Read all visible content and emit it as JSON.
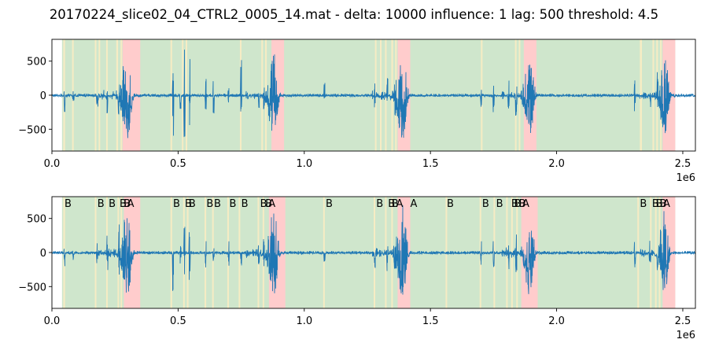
{
  "chart_data": {
    "title": "20170224_slice02_04_CTRL2_0005_14.mat - delta: 10000 influence: 1 lag: 500 threshold: 4.5",
    "type": "line",
    "colors": {
      "signal": "#1f77b4",
      "background_region": "#cfe6cc",
      "event_B": "#f6ecc4",
      "event_A": "#ffcccc"
    },
    "bursts": [
      {
        "x": 300000,
        "amp": 660,
        "w": 30000
      },
      {
        "x": 880000,
        "amp": 680,
        "w": 28000
      },
      {
        "x": 1390000,
        "amp": 720,
        "w": 30000
      },
      {
        "x": 1895000,
        "amp": 650,
        "w": 28000
      },
      {
        "x": 2430000,
        "amp": 640,
        "w": 26000
      }
    ],
    "spikes": [
      {
        "x": 50000,
        "amp": 260
      },
      {
        "x": 85000,
        "amp": 150
      },
      {
        "x": 180000,
        "amp": 220
      },
      {
        "x": 220000,
        "amp": 300
      },
      {
        "x": 265000,
        "amp": 420
      },
      {
        "x": 480000,
        "amp": 680
      },
      {
        "x": 510000,
        "amp": 300
      },
      {
        "x": 525000,
        "amp": 680
      },
      {
        "x": 545000,
        "amp": 560
      },
      {
        "x": 610000,
        "amp": 250
      },
      {
        "x": 640000,
        "amp": 300
      },
      {
        "x": 700000,
        "amp": 220
      },
      {
        "x": 750000,
        "amp": 520
      },
      {
        "x": 820000,
        "amp": 200
      },
      {
        "x": 840000,
        "amp": 320
      },
      {
        "x": 1080000,
        "amp": 180
      },
      {
        "x": 1280000,
        "amp": 250
      },
      {
        "x": 1330000,
        "amp": 280
      },
      {
        "x": 1360000,
        "amp": 350
      },
      {
        "x": 1700000,
        "amp": 200
      },
      {
        "x": 1750000,
        "amp": 250
      },
      {
        "x": 1810000,
        "amp": 300
      },
      {
        "x": 1840000,
        "amp": 350
      },
      {
        "x": 2310000,
        "amp": 280
      },
      {
        "x": 2370000,
        "amp": 200
      },
      {
        "x": 2400000,
        "amp": 350
      }
    ],
    "panels": [
      {
        "xlim": [
          0,
          2550000
        ],
        "ylim": [
          -820,
          820
        ],
        "green_regions": [
          [
            40000,
            2470000
          ]
        ],
        "b_regions": [
          [
            45000,
            52000
          ],
          [
            80000,
            86000
          ],
          [
            170000,
            176000
          ],
          [
            185000,
            191000
          ],
          [
            215000,
            221000
          ],
          [
            255000,
            262000
          ],
          [
            272000,
            278000
          ],
          [
            470000,
            476000
          ],
          [
            515000,
            521000
          ],
          [
            530000,
            536000
          ],
          [
            745000,
            751000
          ],
          [
            830000,
            836000
          ],
          [
            845000,
            851000
          ],
          [
            1280000,
            1286000
          ],
          [
            1300000,
            1306000
          ],
          [
            1320000,
            1326000
          ],
          [
            1345000,
            1352000
          ],
          [
            1360000,
            1366000
          ],
          [
            1700000,
            1706000
          ],
          [
            1835000,
            1841000
          ],
          [
            1850000,
            1856000
          ],
          [
            2330000,
            2338000
          ],
          [
            2380000,
            2386000
          ],
          [
            2395000,
            2401000
          ],
          [
            2410000,
            2416000
          ]
        ],
        "a_regions": [
          [
            280000,
            350000
          ],
          [
            870000,
            920000
          ],
          [
            1370000,
            1420000
          ],
          [
            1870000,
            1920000
          ],
          [
            2420000,
            2470000
          ]
        ],
        "marker_labels": [],
        "yticks": [
          500,
          0,
          -500
        ],
        "ytick_labels": [
          "500",
          "0",
          "−500"
        ],
        "xticks": [
          0,
          500000,
          1000000,
          1500000,
          2000000,
          2500000
        ],
        "xtick_labels": [
          "0.0",
          "0.5",
          "1.0",
          "1.5",
          "2.0",
          "2.5"
        ],
        "x_offset_label": "1e6"
      },
      {
        "xlim": [
          0,
          2550000
        ],
        "ylim": [
          -820,
          820
        ],
        "green_regions": [
          [
            40000,
            2470000
          ]
        ],
        "b_regions": [
          [
            45000,
            52000
          ],
          [
            170000,
            176000
          ],
          [
            215000,
            221000
          ],
          [
            260000,
            266000
          ],
          [
            272000,
            278000
          ],
          [
            470000,
            476000
          ],
          [
            520000,
            526000
          ],
          [
            535000,
            541000
          ],
          [
            605000,
            611000
          ],
          [
            635000,
            641000
          ],
          [
            695000,
            701000
          ],
          [
            740000,
            746000
          ],
          [
            815000,
            821000
          ],
          [
            835000,
            841000
          ],
          [
            1075000,
            1081000
          ],
          [
            1275000,
            1281000
          ],
          [
            1320000,
            1326000
          ],
          [
            1345000,
            1351000
          ],
          [
            1560000,
            1566000
          ],
          [
            1695000,
            1701000
          ],
          [
            1750000,
            1756000
          ],
          [
            1800000,
            1806000
          ],
          [
            1820000,
            1826000
          ],
          [
            1840000,
            1846000
          ],
          [
            2320000,
            2326000
          ],
          [
            2370000,
            2376000
          ],
          [
            2390000,
            2396000
          ],
          [
            2405000,
            2411000
          ]
        ],
        "a_regions": [
          [
            285000,
            350000
          ],
          [
            860000,
            925000
          ],
          [
            1370000,
            1420000
          ],
          [
            1860000,
            1925000
          ],
          [
            2420000,
            2470000
          ]
        ],
        "marker_labels": [
          {
            "x": 50000,
            "text": "B"
          },
          {
            "x": 180000,
            "text": "B"
          },
          {
            "x": 225000,
            "text": "B"
          },
          {
            "x": 268000,
            "text": "B"
          },
          {
            "x": 284000,
            "text": "B"
          },
          {
            "x": 298000,
            "text": "A"
          },
          {
            "x": 480000,
            "text": "B"
          },
          {
            "x": 527000,
            "text": "B"
          },
          {
            "x": 542000,
            "text": "B"
          },
          {
            "x": 612000,
            "text": "B"
          },
          {
            "x": 642000,
            "text": "B"
          },
          {
            "x": 703000,
            "text": "B"
          },
          {
            "x": 750000,
            "text": "B"
          },
          {
            "x": 825000,
            "text": "B"
          },
          {
            "x": 845000,
            "text": "B"
          },
          {
            "x": 858000,
            "text": "A"
          },
          {
            "x": 1085000,
            "text": "B"
          },
          {
            "x": 1285000,
            "text": "B"
          },
          {
            "x": 1332000,
            "text": "B"
          },
          {
            "x": 1346000,
            "text": "B"
          },
          {
            "x": 1364000,
            "text": "A"
          },
          {
            "x": 1420000,
            "text": "A"
          },
          {
            "x": 1565000,
            "text": "B"
          },
          {
            "x": 1705000,
            "text": "B"
          },
          {
            "x": 1760000,
            "text": "B"
          },
          {
            "x": 1820000,
            "text": "B"
          },
          {
            "x": 1832000,
            "text": "B"
          },
          {
            "x": 1850000,
            "text": "B"
          },
          {
            "x": 1864000,
            "text": "A"
          },
          {
            "x": 2330000,
            "text": "B"
          },
          {
            "x": 2378000,
            "text": "B"
          },
          {
            "x": 2393000,
            "text": "B"
          },
          {
            "x": 2408000,
            "text": "B"
          },
          {
            "x": 2422000,
            "text": "A"
          }
        ],
        "yticks": [
          500,
          0,
          -500
        ],
        "ytick_labels": [
          "500",
          "0",
          "−500"
        ],
        "xticks": [
          0,
          500000,
          1000000,
          1500000,
          2000000,
          2500000
        ],
        "xtick_labels": [
          "0.0",
          "0.5",
          "1.0",
          "1.5",
          "2.0",
          "2.5"
        ],
        "x_offset_label": "1e6"
      }
    ]
  }
}
